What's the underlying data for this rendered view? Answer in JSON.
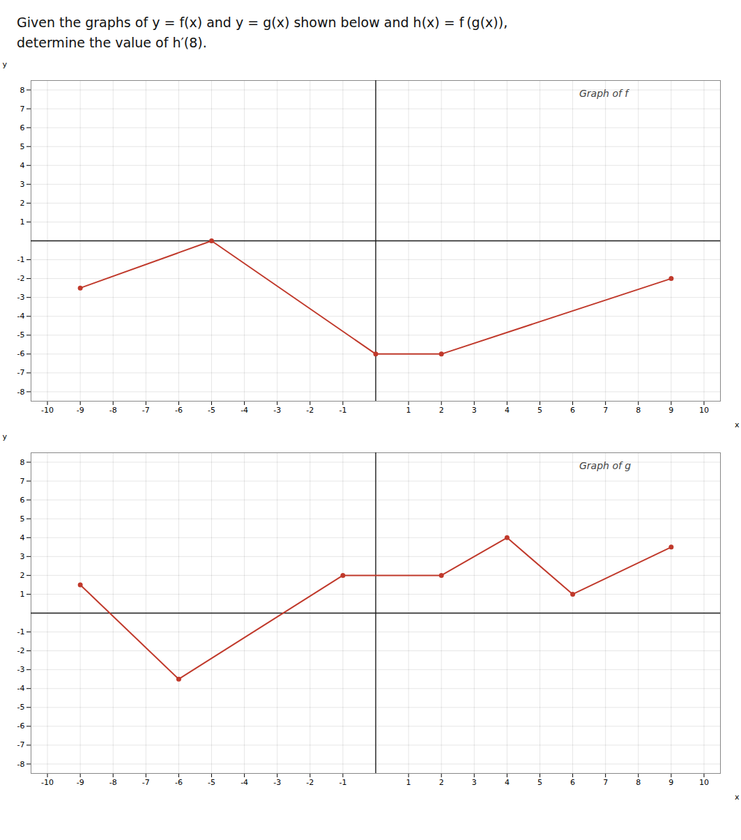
{
  "title": "Given the graphs of y = f(x) and y = g(x) shown below and h(x) = f (g(x)),\ndetermine the value of h′(8).",
  "chart_data": [
    {
      "type": "line",
      "x": [
        -9,
        -5,
        0,
        2,
        9
      ],
      "values": [
        -2.5,
        0,
        -6,
        -6,
        -2
      ],
      "color": "#c0392b",
      "marker": "circle",
      "xlim": [
        -10.5,
        10.5
      ],
      "ylim": [
        -8.5,
        8.5
      ],
      "xticks": [
        -10,
        -9,
        -8,
        -7,
        -6,
        -5,
        -4,
        -3,
        -2,
        -1,
        1,
        2,
        3,
        4,
        5,
        6,
        7,
        8,
        9,
        10
      ],
      "yticks": [
        -8,
        -7,
        -6,
        -5,
        -4,
        -3,
        -2,
        -1,
        1,
        2,
        3,
        4,
        5,
        6,
        7,
        8
      ],
      "grid": true,
      "xlabel": "x",
      "ylabel": "y",
      "annotations": [
        {
          "text": "Graph of f",
          "x": 6.2,
          "y": 7.8
        }
      ]
    },
    {
      "type": "line",
      "x": [
        -9,
        -6,
        -1,
        2,
        4,
        6,
        9
      ],
      "values": [
        1.5,
        -3.5,
        2,
        2,
        4,
        1,
        3.5
      ],
      "color": "#c0392b",
      "marker": "circle",
      "xlim": [
        -10.5,
        10.5
      ],
      "ylim": [
        -8.5,
        8.5
      ],
      "xticks": [
        -10,
        -9,
        -8,
        -7,
        -6,
        -5,
        -4,
        -3,
        -2,
        -1,
        1,
        2,
        3,
        4,
        5,
        6,
        7,
        8,
        9,
        10
      ],
      "yticks": [
        -8,
        -7,
        -6,
        -5,
        -4,
        -3,
        -2,
        -1,
        1,
        2,
        3,
        4,
        5,
        6,
        7,
        8
      ],
      "grid": true,
      "xlabel": "x",
      "ylabel": "y",
      "annotations": [
        {
          "text": "Graph of g",
          "x": 6.2,
          "y": 7.8
        }
      ]
    }
  ]
}
